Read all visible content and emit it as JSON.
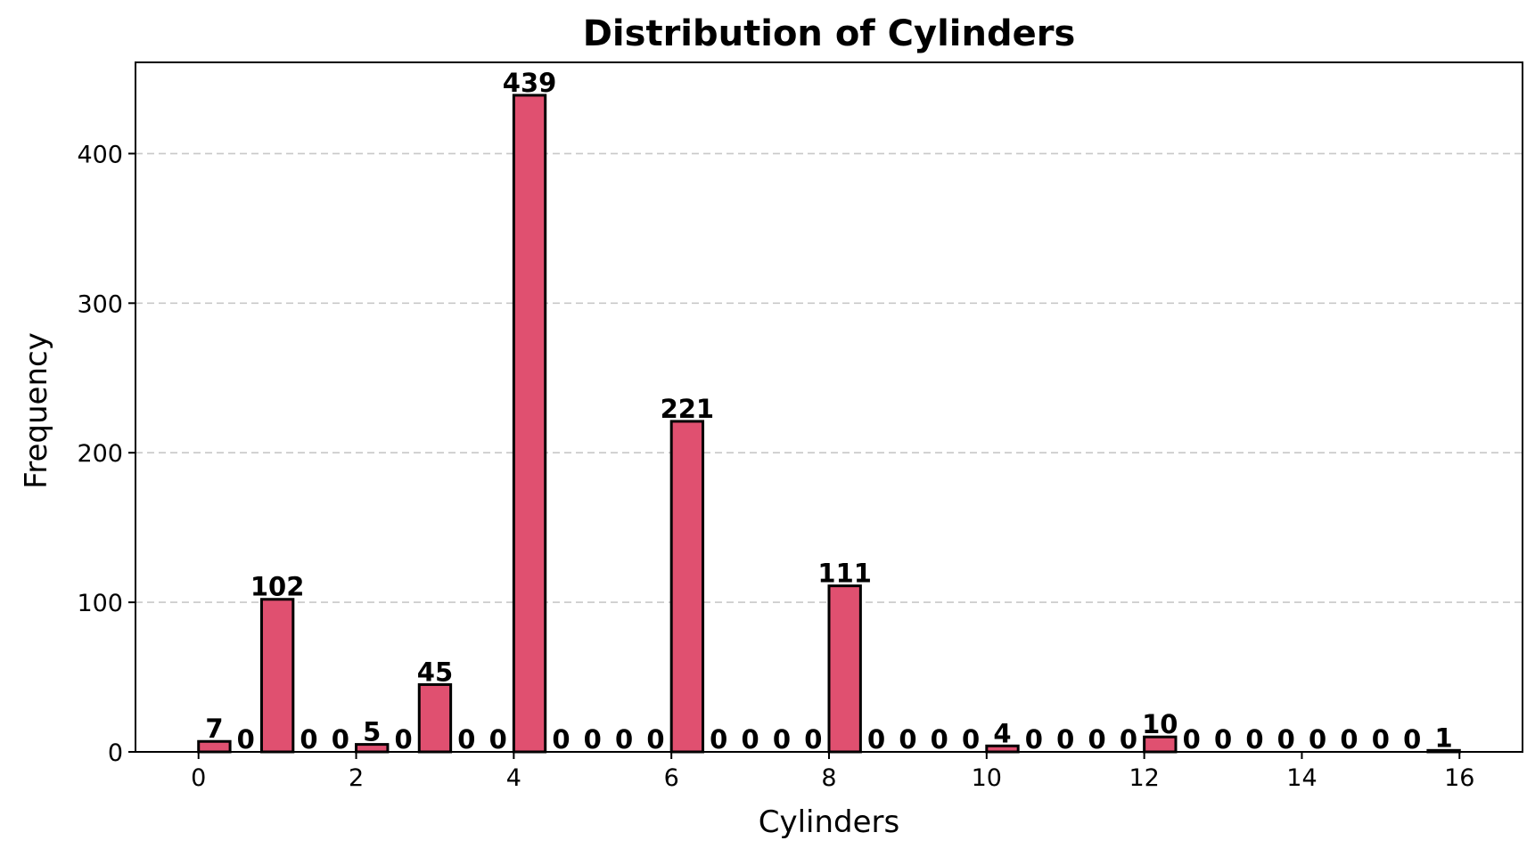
{
  "chart_data": {
    "type": "bar",
    "title": "Distribution of Cylinders",
    "xlabel": "Cylinders",
    "ylabel": "Frequency",
    "xlim": [
      -0.8,
      16.8
    ],
    "ylim": [
      0,
      461
    ],
    "bin_width": 0.4,
    "bar_width": 0.4,
    "x": [
      0,
      0.5,
      1,
      1.5,
      1.8,
      2.2,
      2.6,
      3,
      3.4,
      3.8,
      4.2,
      4.6,
      5,
      5.4,
      5.8,
      6.2,
      6.6,
      7,
      7.4,
      7.8,
      8.2,
      8.6,
      9,
      9.4,
      9.8,
      10.2,
      10.6,
      11,
      11.4,
      11.8,
      12.2,
      12.6,
      13,
      13.4,
      13.8,
      14.2,
      14.6,
      15,
      15.4,
      15.8
    ],
    "values": [
      7,
      0,
      102,
      0,
      0,
      5,
      0,
      45,
      0,
      0,
      439,
      0,
      0,
      0,
      0,
      221,
      0,
      0,
      0,
      0,
      111,
      0,
      0,
      0,
      0,
      4,
      0,
      0,
      0,
      0,
      10,
      0,
      0,
      0,
      0,
      0,
      0,
      0,
      0,
      1
    ],
    "bars": [
      {
        "x": 0.2,
        "value": 7,
        "label": "7"
      },
      {
        "x": 0.6,
        "value": 0,
        "label": "0"
      },
      {
        "x": 1.0,
        "value": 102,
        "label": "102"
      },
      {
        "x": 1.4,
        "value": 0,
        "label": "0"
      },
      {
        "x": 1.8,
        "value": 0,
        "label": "0"
      },
      {
        "x": 2.2,
        "value": 5,
        "label": "5"
      },
      {
        "x": 2.6,
        "value": 0,
        "label": "0"
      },
      {
        "x": 3.0,
        "value": 45,
        "label": "45"
      },
      {
        "x": 3.4,
        "value": 0,
        "label": "0"
      },
      {
        "x": 3.8,
        "value": 0,
        "label": "0"
      },
      {
        "x": 4.2,
        "value": 439,
        "label": "439"
      },
      {
        "x": 4.6,
        "value": 0,
        "label": "0"
      },
      {
        "x": 5.0,
        "value": 0,
        "label": "0"
      },
      {
        "x": 5.4,
        "value": 0,
        "label": "0"
      },
      {
        "x": 5.8,
        "value": 0,
        "label": "0"
      },
      {
        "x": 6.2,
        "value": 221,
        "label": "221"
      },
      {
        "x": 6.6,
        "value": 0,
        "label": "0"
      },
      {
        "x": 7.0,
        "value": 0,
        "label": "0"
      },
      {
        "x": 7.4,
        "value": 0,
        "label": "0"
      },
      {
        "x": 7.8,
        "value": 0,
        "label": "0"
      },
      {
        "x": 8.2,
        "value": 111,
        "label": "111"
      },
      {
        "x": 8.6,
        "value": 0,
        "label": "0"
      },
      {
        "x": 9.0,
        "value": 0,
        "label": "0"
      },
      {
        "x": 9.4,
        "value": 0,
        "label": "0"
      },
      {
        "x": 9.8,
        "value": 0,
        "label": "0"
      },
      {
        "x": 10.2,
        "value": 4,
        "label": "4"
      },
      {
        "x": 10.6,
        "value": 0,
        "label": "0"
      },
      {
        "x": 11.0,
        "value": 0,
        "label": "0"
      },
      {
        "x": 11.4,
        "value": 0,
        "label": "0"
      },
      {
        "x": 11.8,
        "value": 0,
        "label": "0"
      },
      {
        "x": 12.2,
        "value": 10,
        "label": "10"
      },
      {
        "x": 12.6,
        "value": 0,
        "label": "0"
      },
      {
        "x": 13.0,
        "value": 0,
        "label": "0"
      },
      {
        "x": 13.4,
        "value": 0,
        "label": "0"
      },
      {
        "x": 13.8,
        "value": 0,
        "label": "0"
      },
      {
        "x": 14.2,
        "value": 0,
        "label": "0"
      },
      {
        "x": 14.6,
        "value": 0,
        "label": "0"
      },
      {
        "x": 15.0,
        "value": 0,
        "label": "0"
      },
      {
        "x": 15.4,
        "value": 0,
        "label": "0"
      },
      {
        "x": 15.8,
        "value": 1,
        "label": "1"
      }
    ],
    "x_ticks": [
      0,
      2,
      4,
      6,
      8,
      10,
      12,
      14,
      16
    ],
    "x_tick_labels": [
      "0",
      "2",
      "4",
      "6",
      "8",
      "10",
      "12",
      "14",
      "16"
    ],
    "y_ticks": [
      0,
      100,
      200,
      300,
      400
    ],
    "y_tick_labels": [
      "0",
      "100",
      "200",
      "300",
      "400"
    ],
    "grid": {
      "axis": "y",
      "style": "dashed"
    },
    "legend": "none",
    "colors": {
      "bar_fill": "#e05070",
      "bar_edge": "#000000",
      "grid": "#c8c8c8"
    }
  }
}
